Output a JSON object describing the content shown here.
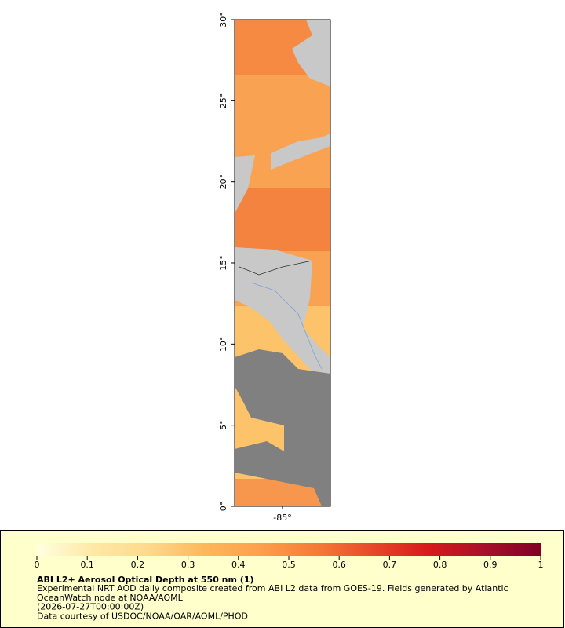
{
  "map": {
    "ylim": [
      0,
      30
    ],
    "yticks": [
      {
        "value": 0,
        "label": "0°"
      },
      {
        "value": 5,
        "label": "5°"
      },
      {
        "value": 10,
        "label": "10°"
      },
      {
        "value": 15,
        "label": "15°"
      },
      {
        "value": 20,
        "label": "20°"
      },
      {
        "value": 25,
        "label": "25°"
      },
      {
        "value": 30,
        "label": "30°"
      }
    ],
    "xlim": [
      -88,
      -82
    ],
    "xticks": [
      {
        "value": -85,
        "label": "-85°"
      }
    ],
    "colorbar": {
      "range": [
        0,
        1
      ],
      "ticks": [
        0,
        0.1,
        0.2,
        0.3,
        0.4,
        0.5,
        0.6,
        0.7,
        0.8,
        0.9,
        1
      ],
      "colors": [
        "#ffffe0",
        "#fee9a6",
        "#fed98e",
        "#fdb75a",
        "#fd9f4c",
        "#f57b36",
        "#e8482a",
        "#d7191c",
        "#a80f2a",
        "#800026"
      ]
    },
    "title": "ABI L2+ Aerosol Optical Depth at 550 nm (1)",
    "lines": [
      "Experimental NRT AOD daily composite created from ABI L2 data from GOES-19. Fields generated by Atlantic",
      "OceanWatch node at NOAA/AOML",
      "(2026-07-27T00:00:00Z)",
      "Data courtesy of USDOC/NOAA/OAR/AOML/PHOD"
    ]
  }
}
